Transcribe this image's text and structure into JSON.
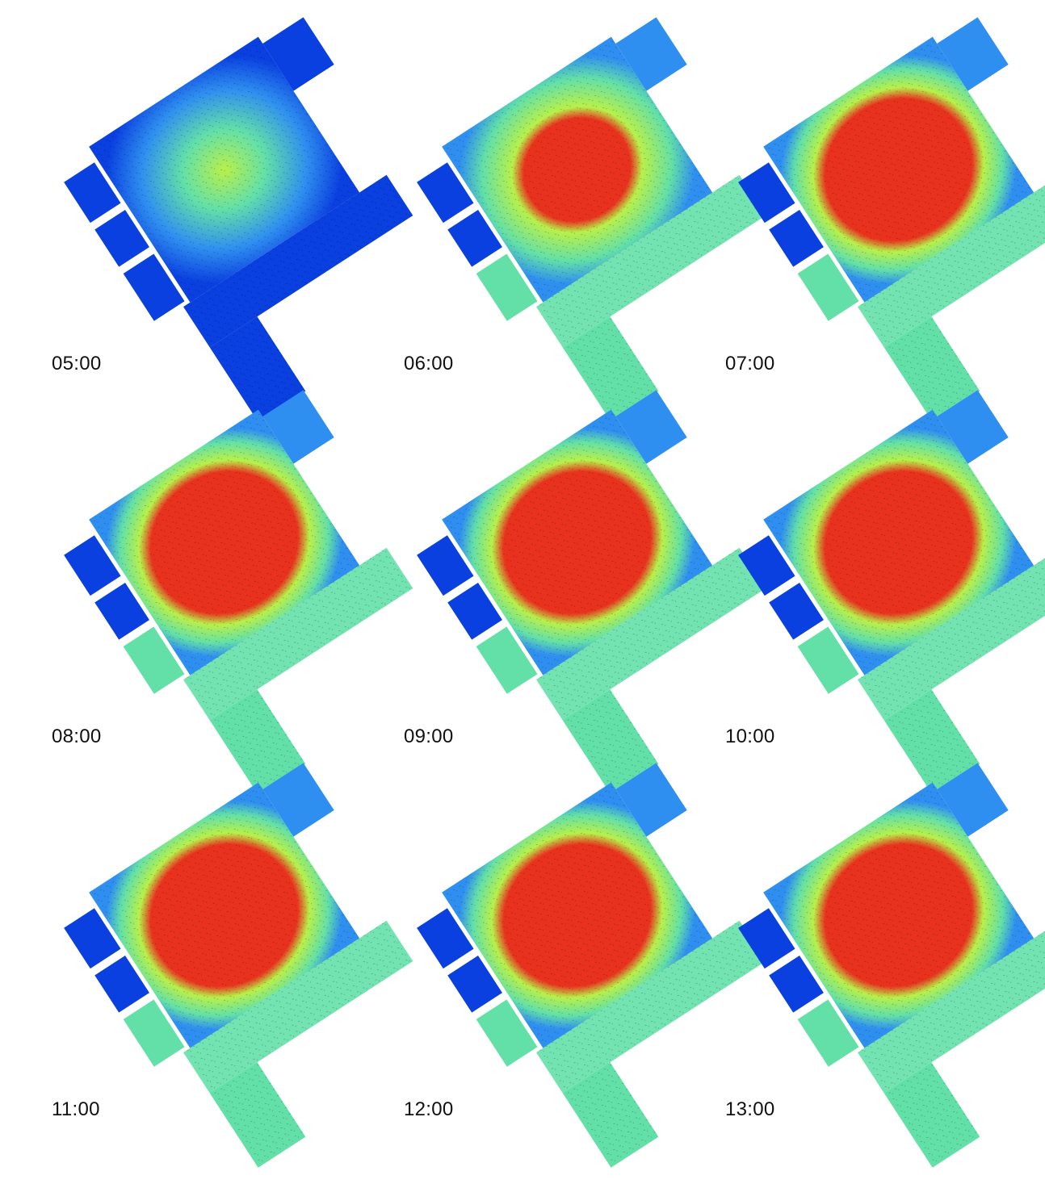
{
  "colors": {
    "cool": "#0a3fe0",
    "cool_light": "#2f8ff0",
    "mid": "#63e0a8",
    "warm": "#b8f04a",
    "hot": "#e8321e"
  },
  "panels": [
    {
      "time": "05:00",
      "state": "cool"
    },
    {
      "time": "06:00",
      "state": "warming"
    },
    {
      "time": "07:00",
      "state": "hot"
    },
    {
      "time": "08:00",
      "state": "hot"
    },
    {
      "time": "09:00",
      "state": "hot"
    },
    {
      "time": "10:00",
      "state": "hot"
    },
    {
      "time": "11:00",
      "state": "hot"
    },
    {
      "time": "12:00",
      "state": "hot"
    },
    {
      "time": "13:00",
      "state": "hot"
    }
  ]
}
